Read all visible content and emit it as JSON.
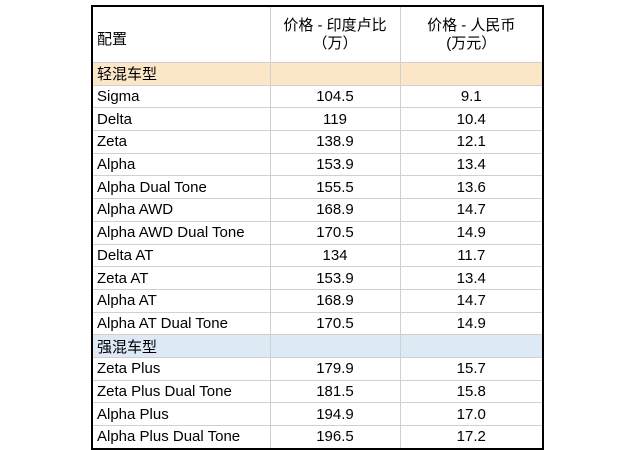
{
  "header": {
    "config": "配置",
    "price_inr_line1": "价格 - 印度卢比",
    "price_inr_line2": "（万）",
    "price_cny_line1": "价格 - 人民币",
    "price_cny_line2": "(万元）"
  },
  "sections": [
    {
      "title": "轻混车型",
      "rows": [
        {
          "name": "Sigma",
          "inr": "104.5",
          "cny": "9.1"
        },
        {
          "name": "Delta",
          "inr": "119",
          "cny": "10.4"
        },
        {
          "name": "Zeta",
          "inr": "138.9",
          "cny": "12.1"
        },
        {
          "name": "Alpha",
          "inr": "153.9",
          "cny": "13.4"
        },
        {
          "name": "Alpha Dual Tone",
          "inr": "155.5",
          "cny": "13.6"
        },
        {
          "name": "Alpha AWD",
          "inr": "168.9",
          "cny": "14.7"
        },
        {
          "name": "Alpha AWD Dual Tone",
          "inr": "170.5",
          "cny": "14.9"
        },
        {
          "name": "Delta AT",
          "inr": "134",
          "cny": "11.7"
        },
        {
          "name": "Zeta AT",
          "inr": "153.9",
          "cny": "13.4"
        },
        {
          "name": "Alpha AT",
          "inr": "168.9",
          "cny": "14.7"
        },
        {
          "name": "Alpha AT Dual Tone",
          "inr": "170.5",
          "cny": "14.9"
        }
      ]
    },
    {
      "title": "强混车型",
      "rows": [
        {
          "name": "Zeta Plus",
          "inr": "179.9",
          "cny": "15.7"
        },
        {
          "name": "Zeta Plus Dual Tone",
          "inr": "181.5",
          "cny": "15.8"
        },
        {
          "name": "Alpha Plus",
          "inr": "194.9",
          "cny": "17.0"
        },
        {
          "name": "Alpha Plus Dual Tone",
          "inr": "196.5",
          "cny": "17.2"
        }
      ]
    }
  ],
  "colors": {
    "mild_section_bg": "#fbe7c7",
    "strong_section_bg": "#dde9f5",
    "border": "#000000",
    "grid": "#d0d0d0"
  }
}
